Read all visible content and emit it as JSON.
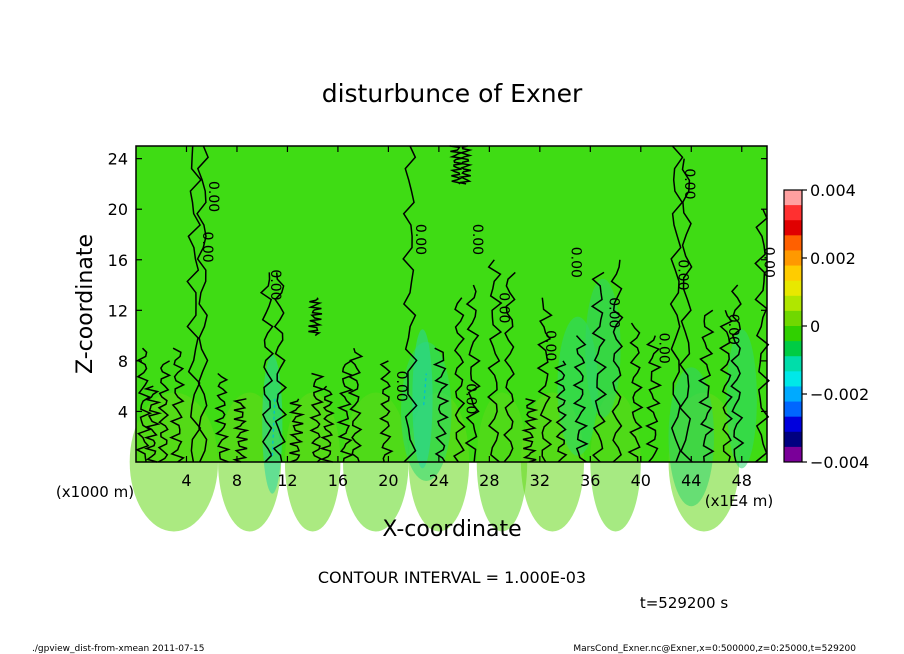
{
  "chart_data": {
    "type": "contour",
    "title": "disturbunce of Exner",
    "xlabel": "X-coordinate",
    "ylabel": "Z-coordinate",
    "x_unit_left": "(x1000 m)",
    "x_unit_right": "(x1E4 m)",
    "x_ticks": [
      "4",
      "8",
      "12",
      "16",
      "20",
      "24",
      "28",
      "32",
      "36",
      "40",
      "44",
      "48"
    ],
    "x_tick_values": [
      4,
      8,
      12,
      16,
      20,
      24,
      28,
      32,
      36,
      40,
      44,
      48
    ],
    "xlim": [
      0,
      50
    ],
    "y_ticks": [
      "4",
      "8",
      "12",
      "16",
      "20",
      "24"
    ],
    "y_tick_values": [
      4,
      8,
      12,
      16,
      20,
      24
    ],
    "ylim": [
      0,
      25
    ],
    "colorbar": {
      "tick_labels": [
        "0.004",
        "0.002",
        "0",
        "−0.002",
        "−0.004"
      ],
      "range": [
        -0.004,
        0.004
      ],
      "colors": [
        "#ffa0a0",
        "#ff3030",
        "#e00000",
        "#ff6000",
        "#ff9900",
        "#ffcc00",
        "#e8e800",
        "#b0e600",
        "#70d800",
        "#30d000",
        "#00cc44",
        "#00ddaa",
        "#00e8e8",
        "#00aaff",
        "#0066ff",
        "#0000dd",
        "#000080",
        "#7a0099"
      ]
    },
    "contour_labels": [
      {
        "text": "0.00",
        "x": 5.3,
        "y": 17.0
      },
      {
        "text": "0.00",
        "x": 5.8,
        "y": 21.0
      },
      {
        "text": "0.00",
        "x": 10.7,
        "y": 14.0
      },
      {
        "text": "0.00",
        "x": 20.7,
        "y": 6.0
      },
      {
        "text": "0.00",
        "x": 22.2,
        "y": 17.6
      },
      {
        "text": "0.00",
        "x": 26.2,
        "y": 5.0
      },
      {
        "text": "0.00",
        "x": 26.7,
        "y": 17.6
      },
      {
        "text": "0.00",
        "x": 28.8,
        "y": 12.2
      },
      {
        "text": "0.00",
        "x": 32.5,
        "y": 9.2
      },
      {
        "text": "0.00",
        "x": 34.5,
        "y": 15.8
      },
      {
        "text": "0.00",
        "x": 37.5,
        "y": 11.8
      },
      {
        "text": "0.00",
        "x": 41.5,
        "y": 9.0
      },
      {
        "text": "0.00",
        "x": 43.0,
        "y": 14.8
      },
      {
        "text": "0.00",
        "x": 43.5,
        "y": 22.0
      },
      {
        "text": "0.00",
        "x": 47.0,
        "y": 10.5
      },
      {
        "text": "0.00",
        "x": 49.8,
        "y": 15.8
      }
    ],
    "contour_interval_text": "CONTOUR INTERVAL = 1.000E-03",
    "time_text": "t=529200 s"
  },
  "footer": {
    "left": "./gpview_dist-from-xmean  2011-07-15",
    "right": "MarsCond_Exner.nc@Exner,x=0:500000,z=0:25000,t=529200"
  }
}
